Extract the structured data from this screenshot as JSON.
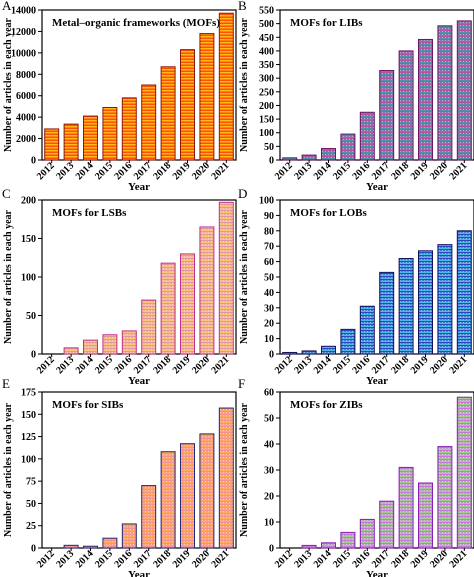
{
  "figure": {
    "x_label": "Year",
    "y_label": "Number of articles in each year"
  },
  "chart_data": [
    {
      "panel": "A",
      "type": "bar",
      "title": "Metal–organic frameworks (MOFs)",
      "categories": [
        "2012",
        "2013",
        "2014",
        "2015",
        "2016",
        "2017",
        "2018",
        "2019",
        "2020",
        "2021"
      ],
      "values": [
        2900,
        3350,
        4100,
        4900,
        5800,
        7000,
        8700,
        10300,
        11800,
        13700
      ],
      "xlabel": "Year",
      "ylabel": "Number of articles in each year",
      "ylim": [
        0,
        14000
      ],
      "yticks": [
        0,
        2000,
        4000,
        6000,
        8000,
        10000,
        12000,
        14000
      ],
      "grid": false,
      "colors": {
        "top": "#ffd21c",
        "bottom": "#ff3600",
        "border": "#8a1a0a"
      }
    },
    {
      "panel": "B",
      "type": "bar",
      "title": "MOFs for LIBs",
      "categories": [
        "2012",
        "2013",
        "2014",
        "2015",
        "2016",
        "2017",
        "2018",
        "2019",
        "2020",
        "2021"
      ],
      "values": [
        8,
        18,
        42,
        95,
        175,
        328,
        400,
        442,
        492,
        510
      ],
      "xlabel": "Year",
      "ylabel": "Number of articles in each year",
      "ylim": [
        0,
        550
      ],
      "yticks": [
        0,
        50,
        100,
        150,
        200,
        250,
        300,
        350,
        400,
        450,
        500,
        550
      ],
      "grid": false,
      "colors": {
        "top": "#d43fa8",
        "bottom": "#31a6a3",
        "border": "#6a1463"
      }
    },
    {
      "panel": "C",
      "type": "bar",
      "title": "MOFs for LSBs",
      "categories": [
        "2012",
        "2013",
        "2014",
        "2015",
        "2016",
        "2017",
        "2018",
        "2019",
        "2020",
        "2021"
      ],
      "values": [
        0,
        8,
        18,
        25,
        30,
        70,
        118,
        130,
        165,
        197
      ],
      "xlabel": "Year",
      "ylabel": "Number of articles in each year",
      "ylim": [
        0,
        200
      ],
      "yticks": [
        0,
        50,
        100,
        150,
        200
      ],
      "grid": false,
      "colors": {
        "top": "#e08ab0",
        "bottom": "#ffd36a",
        "border": "#c2308c"
      }
    },
    {
      "panel": "D",
      "type": "bar",
      "title": "MOFs for LOBs",
      "categories": [
        "2012",
        "2013",
        "2014",
        "2015",
        "2016",
        "2017",
        "2018",
        "2019",
        "2020",
        "2021"
      ],
      "values": [
        1,
        2,
        5,
        16,
        31,
        53,
        62,
        67,
        71,
        80
      ],
      "xlabel": "Year",
      "ylabel": "Number of articles in each year",
      "ylim": [
        0,
        100
      ],
      "yticks": [
        0,
        10,
        20,
        30,
        40,
        50,
        60,
        70,
        80,
        90,
        100
      ],
      "grid": false,
      "colors": {
        "top": "#2a2ab8",
        "bottom": "#4fd8ee",
        "border": "#10105a"
      }
    },
    {
      "panel": "E",
      "type": "bar",
      "title": "MOFs for SIBs",
      "categories": [
        "2012",
        "2013",
        "2014",
        "2015",
        "2016",
        "2017",
        "2018",
        "2019",
        "2020",
        "2021"
      ],
      "values": [
        0,
        3,
        2,
        11,
        27,
        70,
        108,
        117,
        128,
        157
      ],
      "xlabel": "Year",
      "ylabel": "Number of articles in each year",
      "ylim": [
        0,
        175
      ],
      "yticks": [
        0,
        25,
        50,
        75,
        100,
        125,
        150,
        175
      ],
      "grid": false,
      "colors": {
        "top": "#f08aa5",
        "bottom": "#ffb24a",
        "border": "#23237a"
      }
    },
    {
      "panel": "F",
      "type": "bar",
      "title": "MOFs for ZIBs",
      "categories": [
        "2012",
        "2013",
        "2014",
        "2015",
        "2016",
        "2017",
        "2018",
        "2019",
        "2020",
        "2021"
      ],
      "values": [
        0,
        1,
        2,
        6,
        11,
        18,
        31,
        25,
        39,
        58
      ],
      "xlabel": "Year",
      "ylabel": "Number of articles in each year",
      "ylim": [
        0,
        60
      ],
      "yticks": [
        0,
        10,
        20,
        30,
        40,
        50,
        60
      ],
      "grid": false,
      "colors": {
        "top": "#cc66ee",
        "bottom": "#9be07a",
        "border": "#8a1ab8"
      }
    }
  ]
}
